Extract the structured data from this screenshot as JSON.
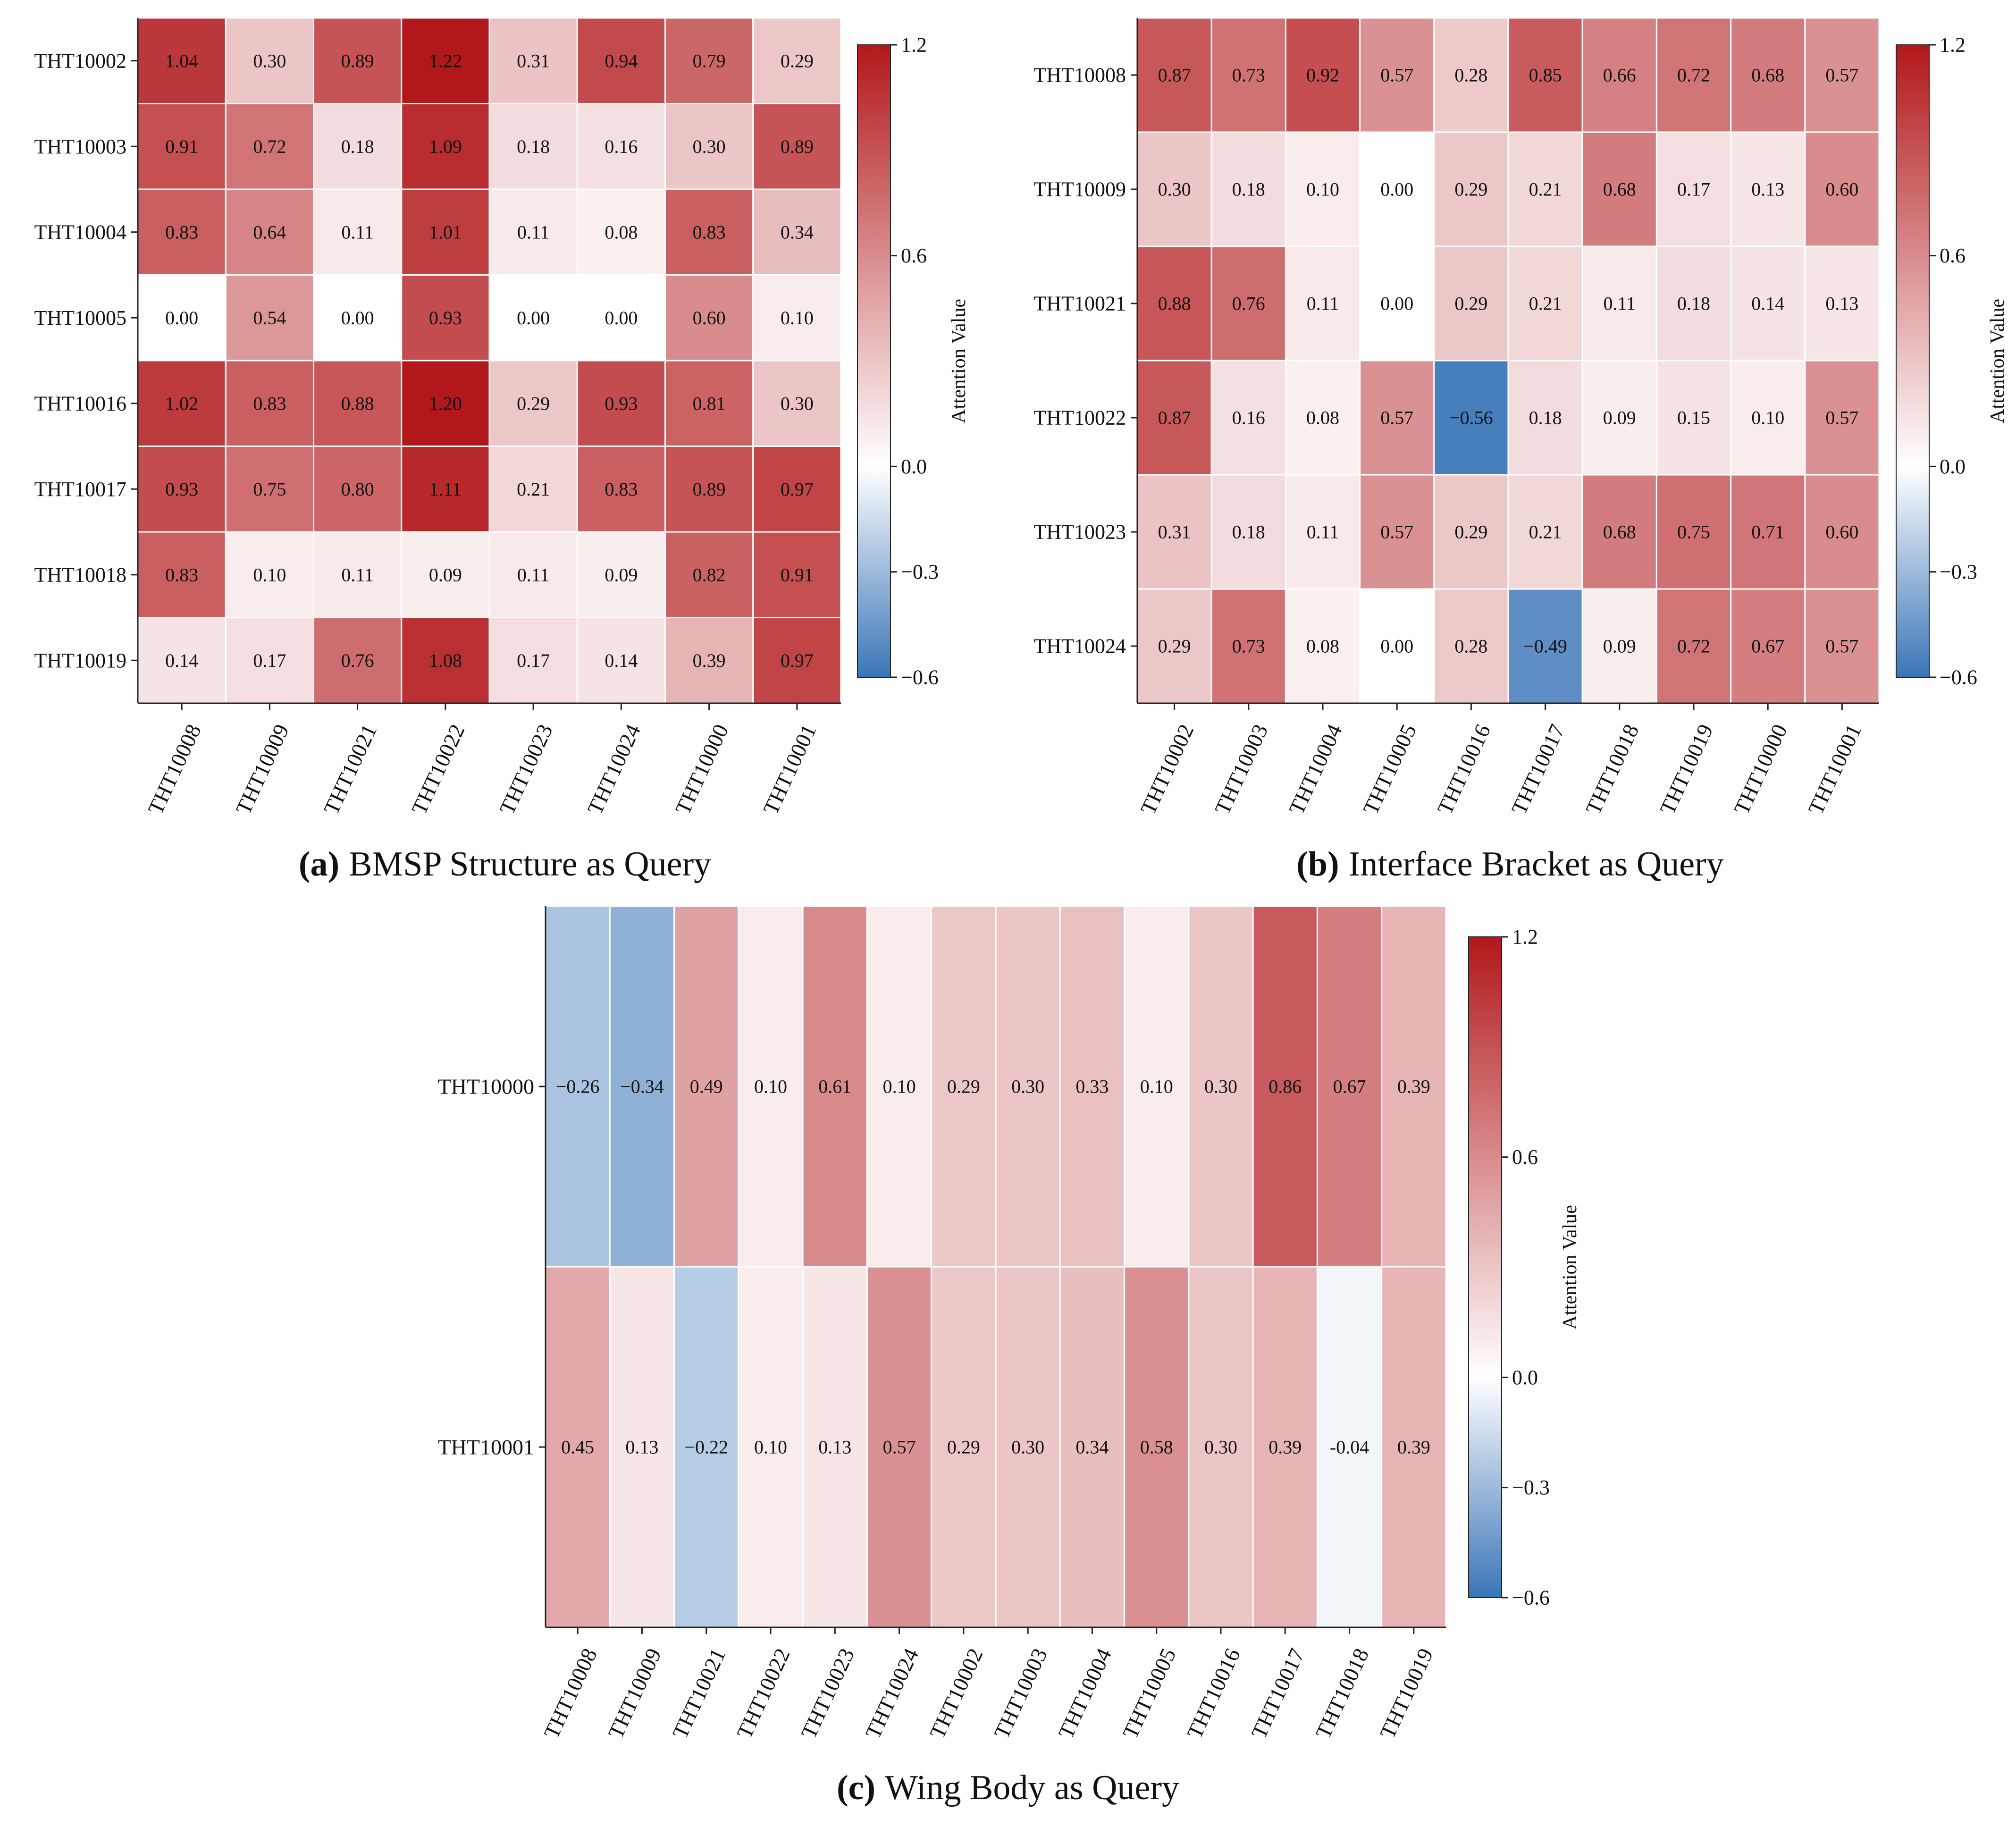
{
  "chart_data": [
    {
      "type": "heatmap",
      "panel_label": "(a)",
      "title": "BMSP Structure as Query",
      "rows": [
        "THT10002",
        "THT10003",
        "THT10004",
        "THT10005",
        "THT10016",
        "THT10017",
        "THT10018",
        "THT10019"
      ],
      "columns": [
        "THT10008",
        "THT10009",
        "THT10021",
        "THT10022",
        "THT10023",
        "THT10024",
        "THT10000",
        "THT10001"
      ],
      "values": [
        [
          1.04,
          0.3,
          0.89,
          1.22,
          0.31,
          0.94,
          0.79,
          0.29
        ],
        [
          0.91,
          0.72,
          0.18,
          1.09,
          0.18,
          0.16,
          0.3,
          0.89
        ],
        [
          0.83,
          0.64,
          0.11,
          1.01,
          0.11,
          0.08,
          0.83,
          0.34
        ],
        [
          0.0,
          0.54,
          0.0,
          0.93,
          0.0,
          0.0,
          0.6,
          0.1
        ],
        [
          1.02,
          0.83,
          0.88,
          1.2,
          0.29,
          0.93,
          0.81,
          0.3
        ],
        [
          0.93,
          0.75,
          0.8,
          1.11,
          0.21,
          0.83,
          0.89,
          0.97
        ],
        [
          0.83,
          0.1,
          0.11,
          0.09,
          0.11,
          0.09,
          0.82,
          0.91
        ],
        [
          0.14,
          0.17,
          0.76,
          1.08,
          0.17,
          0.14,
          0.39,
          0.97
        ]
      ],
      "value_labels": [
        [
          "1.04",
          "0.30",
          "0.89",
          "1.22",
          "0.31",
          "0.94",
          "0.79",
          "0.29"
        ],
        [
          "0.91",
          "0.72",
          "0.18",
          "1.09",
          "0.18",
          "0.16",
          "0.30",
          "0.89"
        ],
        [
          "0.83",
          "0.64",
          "0.11",
          "1.01",
          "0.11",
          "0.08",
          "0.83",
          "0.34"
        ],
        [
          "0.00",
          "0.54",
          "0.00",
          "0.93",
          "0.00",
          "0.00",
          "0.60",
          "0.10"
        ],
        [
          "1.02",
          "0.83",
          "0.88",
          "1.20",
          "0.29",
          "0.93",
          "0.81",
          "0.30"
        ],
        [
          "0.93",
          "0.75",
          "0.80",
          "1.11",
          "0.21",
          "0.83",
          "0.89",
          "0.97"
        ],
        [
          "0.83",
          "0.10",
          "0.11",
          "0.09",
          "0.11",
          "0.09",
          "0.82",
          "0.91"
        ],
        [
          "0.14",
          "0.17",
          "0.76",
          "1.08",
          "0.17",
          "0.14",
          "0.39",
          "0.97"
        ]
      ],
      "colorbar": {
        "label": "Attention Value",
        "range": [
          -0.6,
          1.2
        ],
        "ticks": [
          "1.2",
          "0.6",
          "0.0",
          "−0.3",
          "−0.6"
        ]
      }
    },
    {
      "type": "heatmap",
      "panel_label": "(b)",
      "title": "Interface Bracket as Query",
      "rows": [
        "THT10008",
        "THT10009",
        "THT10021",
        "THT10022",
        "THT10023",
        "THT10024"
      ],
      "columns": [
        "THT10002",
        "THT10003",
        "THT10004",
        "THT10005",
        "THT10016",
        "THT10017",
        "THT10018",
        "THT10019",
        "THT10000",
        "THT10001"
      ],
      "values": [
        [
          0.87,
          0.73,
          0.92,
          0.57,
          0.28,
          0.85,
          0.66,
          0.72,
          0.68,
          0.57
        ],
        [
          0.3,
          0.18,
          0.1,
          0.0,
          0.29,
          0.21,
          0.68,
          0.17,
          0.13,
          0.6
        ],
        [
          0.88,
          0.76,
          0.11,
          0.0,
          0.29,
          0.21,
          0.11,
          0.18,
          0.14,
          0.13
        ],
        [
          0.87,
          0.16,
          0.08,
          0.57,
          -0.56,
          0.18,
          0.09,
          0.15,
          0.1,
          0.57
        ],
        [
          0.31,
          0.18,
          0.11,
          0.57,
          0.29,
          0.21,
          0.68,
          0.75,
          0.71,
          0.6
        ],
        [
          0.29,
          0.73,
          0.08,
          0.0,
          0.28,
          -0.49,
          0.09,
          0.72,
          0.67,
          0.57
        ]
      ],
      "value_labels": [
        [
          "0.87",
          "0.73",
          "0.92",
          "0.57",
          "0.28",
          "0.85",
          "0.66",
          "0.72",
          "0.68",
          "0.57"
        ],
        [
          "0.30",
          "0.18",
          "0.10",
          "0.00",
          "0.29",
          "0.21",
          "0.68",
          "0.17",
          "0.13",
          "0.60"
        ],
        [
          "0.88",
          "0.76",
          "0.11",
          "0.00",
          "0.29",
          "0.21",
          "0.11",
          "0.18",
          "0.14",
          "0.13"
        ],
        [
          "0.87",
          "0.16",
          "0.08",
          "0.57",
          "−0.56",
          "0.18",
          "0.09",
          "0.15",
          "0.10",
          "0.57"
        ],
        [
          "0.31",
          "0.18",
          "0.11",
          "0.57",
          "0.29",
          "0.21",
          "0.68",
          "0.75",
          "0.71",
          "0.60"
        ],
        [
          "0.29",
          "0.73",
          "0.08",
          "0.00",
          "0.28",
          "−0.49",
          "0.09",
          "0.72",
          "0.67",
          "0.57"
        ]
      ],
      "colorbar": {
        "label": "Attention Value",
        "range": [
          -0.6,
          1.2
        ],
        "ticks": [
          "1.2",
          "0.6",
          "0.0",
          "−0.3",
          "−0.6"
        ]
      }
    },
    {
      "type": "heatmap",
      "panel_label": "(c)",
      "title": "Wing Body as Query",
      "rows": [
        "THT10000",
        "THT10001"
      ],
      "columns": [
        "THT10008",
        "THT10009",
        "THT10021",
        "THT10022",
        "THT10023",
        "THT10024",
        "THT10002",
        "THT10003",
        "THT10004",
        "THT10005",
        "THT10016",
        "THT10017",
        "THT10018",
        "THT10019"
      ],
      "values": [
        [
          -0.26,
          -0.34,
          0.49,
          0.1,
          0.61,
          0.1,
          0.29,
          0.3,
          0.33,
          0.1,
          0.3,
          0.86,
          0.67,
          0.39
        ],
        [
          0.45,
          0.13,
          -0.22,
          0.1,
          0.13,
          0.57,
          0.29,
          0.3,
          0.34,
          0.58,
          0.3,
          0.39,
          -0.04,
          0.39
        ]
      ],
      "value_labels": [
        [
          "−0.26",
          "−0.34",
          "0.49",
          "0.10",
          "0.61",
          "0.10",
          "0.29",
          "0.30",
          "0.33",
          "0.10",
          "0.30",
          "0.86",
          "0.67",
          "0.39"
        ],
        [
          "0.45",
          "0.13",
          "−0.22",
          "0.10",
          "0.13",
          "0.57",
          "0.29",
          "0.30",
          "0.34",
          "0.58",
          "0.30",
          "0.39",
          "-0.04",
          "0.39"
        ]
      ],
      "colorbar": {
        "label": "Attention Value",
        "range": [
          -0.6,
          1.2
        ],
        "ticks": [
          "1.2",
          "0.6",
          "0.0",
          "−0.3",
          "−0.6"
        ]
      }
    }
  ],
  "colormap": {
    "negative": "#3a75b7",
    "zero": "#ffffff",
    "positive": "#b2181b"
  }
}
